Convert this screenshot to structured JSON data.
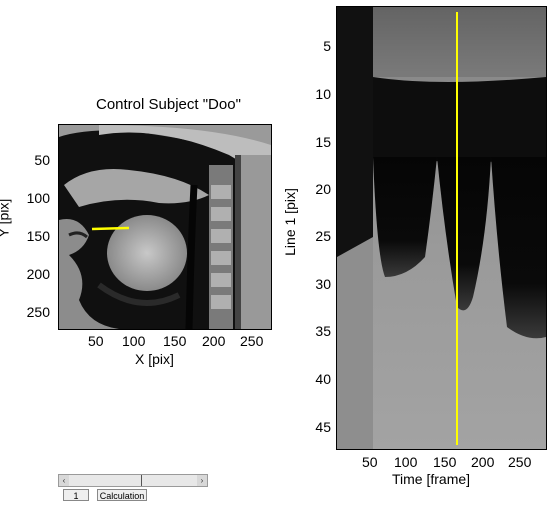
{
  "left_panel": {
    "title": "Control Subject \"Doo\"",
    "xlabel": "X [pix]",
    "ylabel": "Y [pix]",
    "xticks": [
      "50",
      "100",
      "150",
      "200",
      "250"
    ],
    "yticks": [
      "50",
      "100",
      "150",
      "200",
      "250"
    ],
    "line_color": "#ffff00"
  },
  "right_panel": {
    "xlabel": "Time [frame]",
    "ylabel": "Line 1 [pix]",
    "xticks": [
      "50",
      "100",
      "150",
      "200",
      "250"
    ],
    "yticks": [
      "5",
      "10",
      "15",
      "20",
      "25",
      "30",
      "35",
      "40",
      "45"
    ],
    "cursor_color": "#ffff00"
  },
  "controls": {
    "frame_field": "1",
    "calc_button": "Calculation",
    "left_arrow": "‹",
    "right_arrow": "›"
  }
}
